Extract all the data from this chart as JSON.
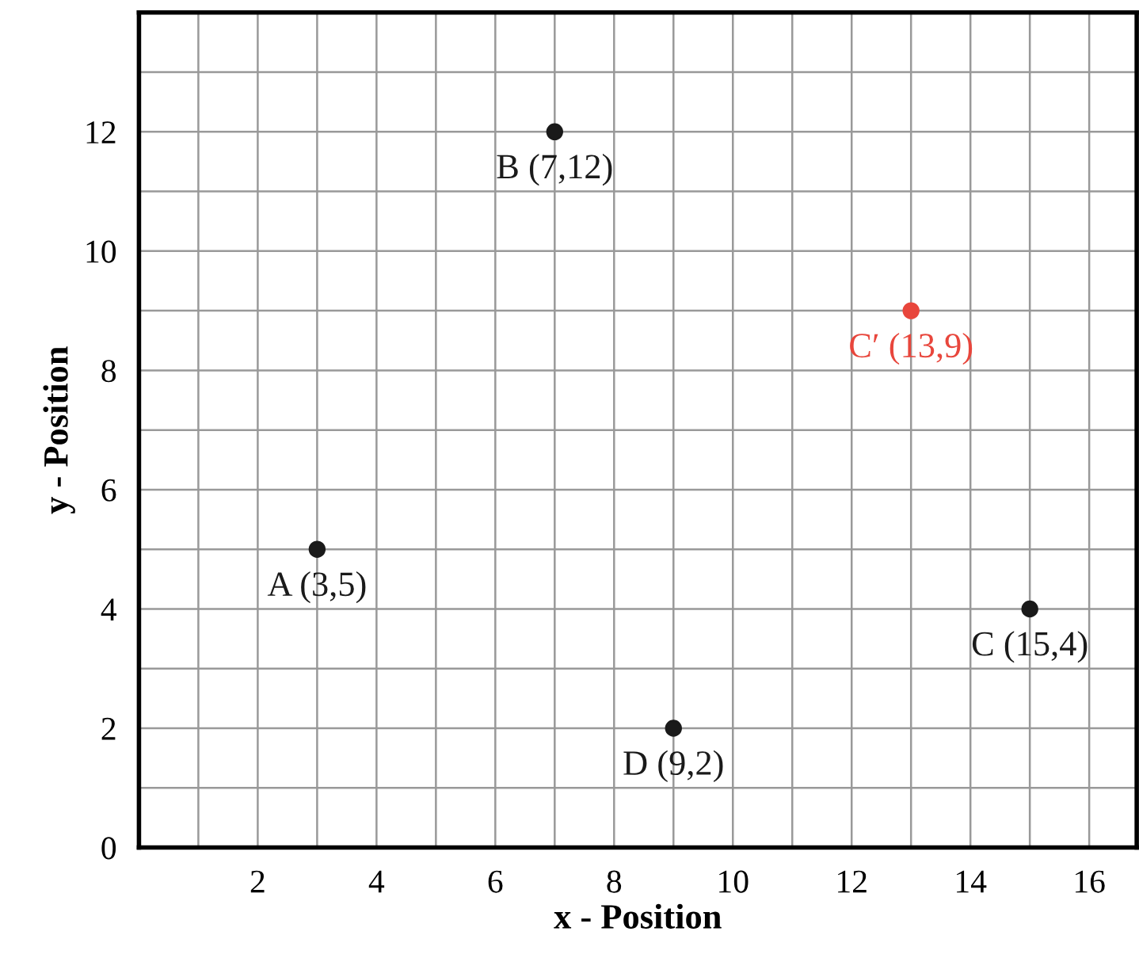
{
  "chart_data": {
    "type": "scatter",
    "xlabel": "x - Position",
    "ylabel": "y - Position",
    "xlim": [
      0,
      16.8
    ],
    "ylim": [
      0,
      14
    ],
    "xticks": [
      {
        "value": 1,
        "label": null
      },
      2,
      {
        "value": 3,
        "label": null
      },
      4,
      {
        "value": 5,
        "label": null
      },
      6,
      {
        "value": 7,
        "label": null
      },
      8,
      {
        "value": 9,
        "label": null
      },
      10,
      {
        "value": 11,
        "label": null
      },
      12,
      {
        "value": 13,
        "label": null
      },
      14,
      {
        "value": 15,
        "label": null
      },
      16
    ],
    "yticks": [
      0,
      {
        "value": 1,
        "label": null
      },
      2,
      {
        "value": 3,
        "label": null
      },
      4,
      {
        "value": 5,
        "label": null
      },
      6,
      {
        "value": 7,
        "label": null
      },
      8,
      {
        "value": 9,
        "label": null
      },
      10,
      {
        "value": 11,
        "label": null
      },
      12,
      {
        "value": 13,
        "label": null
      }
    ],
    "grid": true,
    "marker": "circle",
    "legend": false,
    "series": [
      {
        "color": "#1a1a1a",
        "x": [
          3,
          7,
          15,
          9
        ],
        "values": [
          5,
          12,
          4,
          2
        ]
      },
      {
        "color": "#e8463c",
        "x": [
          13
        ],
        "values": [
          9
        ]
      }
    ],
    "annotations": [
      {
        "text": "A (3,5)",
        "x": 3,
        "y": 5
      },
      {
        "text": "B (7,12)",
        "x": 7,
        "y": 12
      },
      {
        "text": "C (15,4)",
        "x": 15,
        "y": 4
      },
      {
        "text": "D (9,2)",
        "x": 9,
        "y": 2
      },
      {
        "text": "C′ (13,9)",
        "x": 13,
        "y": 9
      }
    ]
  }
}
